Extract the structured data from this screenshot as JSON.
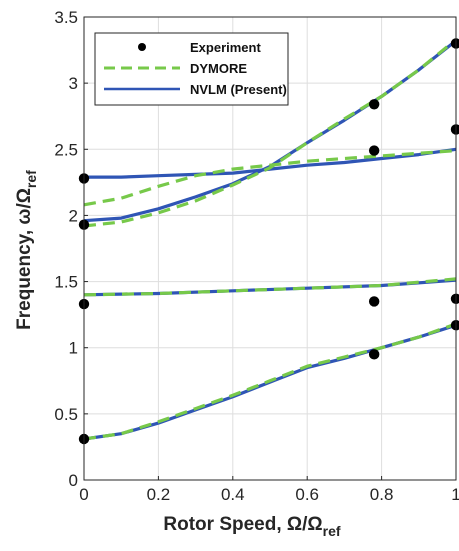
{
  "chart_data": {
    "type": "line",
    "xlabel": "Rotor Speed, Ω/Ω",
    "xlabel_sub": "ref",
    "ylabel": "Frequency, ω/Ω",
    "ylabel_sub": "ref",
    "xlim": [
      0,
      1
    ],
    "ylim": [
      0,
      3.5
    ],
    "xticks": [
      "0",
      "0.2",
      "0.4",
      "0.6",
      "0.8",
      "1"
    ],
    "yticks": [
      "0",
      "0.5",
      "1",
      "1.5",
      "2",
      "2.5",
      "3",
      "3.5"
    ],
    "grid": true,
    "legend_position": "top-left",
    "colors": {
      "experiment": "#000000",
      "dymore": "#77c94a",
      "nvlm": "#2f55b5"
    },
    "series": [
      {
        "name": "Experiment",
        "style": "markers",
        "points": [
          [
            0,
            0.31
          ],
          [
            0,
            1.33
          ],
          [
            0,
            1.93
          ],
          [
            0,
            2.28
          ],
          [
            0.78,
            0.95
          ],
          [
            0.78,
            1.35
          ],
          [
            0.78,
            2.49
          ],
          [
            0.78,
            2.84
          ],
          [
            1,
            1.17
          ],
          [
            1,
            1.37
          ],
          [
            1,
            2.65
          ],
          [
            1,
            3.3
          ]
        ]
      },
      {
        "name": "DYMORE",
        "style": "dashed",
        "curves": [
          [
            [
              0,
              0.31
            ],
            [
              0.1,
              0.35
            ],
            [
              0.2,
              0.44
            ],
            [
              0.3,
              0.54
            ],
            [
              0.4,
              0.64
            ],
            [
              0.5,
              0.75
            ],
            [
              0.6,
              0.86
            ],
            [
              0.7,
              0.93
            ],
            [
              0.8,
              1.0
            ],
            [
              0.9,
              1.08
            ],
            [
              1,
              1.18
            ]
          ],
          [
            [
              0,
              1.4
            ],
            [
              0.2,
              1.41
            ],
            [
              0.4,
              1.43
            ],
            [
              0.6,
              1.45
            ],
            [
              0.8,
              1.47
            ],
            [
              1,
              1.52
            ]
          ],
          [
            [
              0,
              2.08
            ],
            [
              0.1,
              2.13
            ],
            [
              0.2,
              2.22
            ],
            [
              0.3,
              2.3
            ],
            [
              0.4,
              2.35
            ],
            [
              0.5,
              2.38
            ],
            [
              0.6,
              2.41
            ],
            [
              0.7,
              2.43
            ],
            [
              0.8,
              2.45
            ],
            [
              0.9,
              2.47
            ],
            [
              1,
              2.49
            ]
          ],
          [
            [
              0,
              1.92
            ],
            [
              0.1,
              1.95
            ],
            [
              0.2,
              2.02
            ],
            [
              0.3,
              2.11
            ],
            [
              0.4,
              2.23
            ],
            [
              0.5,
              2.36
            ],
            [
              0.6,
              2.55
            ],
            [
              0.7,
              2.73
            ],
            [
              0.8,
              2.9
            ],
            [
              0.9,
              3.1
            ],
            [
              1,
              3.33
            ]
          ]
        ]
      },
      {
        "name": "NVLM (Present)",
        "style": "solid",
        "curves": [
          [
            [
              0,
              0.31
            ],
            [
              0.1,
              0.35
            ],
            [
              0.2,
              0.43
            ],
            [
              0.3,
              0.53
            ],
            [
              0.4,
              0.63
            ],
            [
              0.5,
              0.74
            ],
            [
              0.6,
              0.85
            ],
            [
              0.7,
              0.92
            ],
            [
              0.8,
              1.0
            ],
            [
              0.9,
              1.08
            ],
            [
              1,
              1.17
            ]
          ],
          [
            [
              0,
              1.4
            ],
            [
              0.2,
              1.41
            ],
            [
              0.4,
              1.43
            ],
            [
              0.6,
              1.45
            ],
            [
              0.8,
              1.47
            ],
            [
              1,
              1.51
            ]
          ],
          [
            [
              0,
              2.29
            ],
            [
              0.1,
              2.29
            ],
            [
              0.2,
              2.3
            ],
            [
              0.3,
              2.31
            ],
            [
              0.4,
              2.32
            ],
            [
              0.5,
              2.35
            ],
            [
              0.6,
              2.38
            ],
            [
              0.7,
              2.4
            ],
            [
              0.8,
              2.43
            ],
            [
              0.9,
              2.46
            ],
            [
              1,
              2.5
            ]
          ],
          [
            [
              0,
              1.96
            ],
            [
              0.1,
              1.98
            ],
            [
              0.2,
              2.05
            ],
            [
              0.3,
              2.14
            ],
            [
              0.4,
              2.24
            ],
            [
              0.5,
              2.37
            ],
            [
              0.6,
              2.55
            ],
            [
              0.7,
              2.72
            ],
            [
              0.8,
              2.9
            ],
            [
              0.9,
              3.1
            ],
            [
              1,
              3.32
            ]
          ]
        ]
      }
    ]
  }
}
